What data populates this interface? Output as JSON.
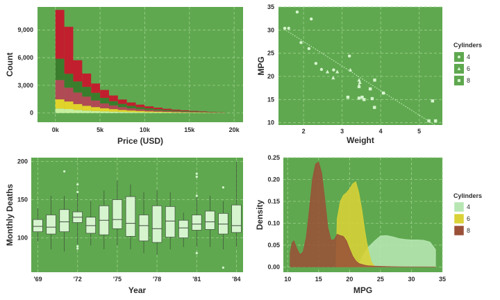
{
  "colors": {
    "panel": "#5fa84f",
    "grid": "#9fd08f",
    "light": "#d6f5cf",
    "bar_red": "#c11f2e",
    "bar_darkgreen": "#3a7d2c",
    "bar_pink": "#c05660",
    "bar_rose": "#b04a55",
    "bar_yellow": "#e2d32a",
    "bar_palegreen": "#c6ef9e",
    "dens_light": "#b7e6b3",
    "dens_yellow": "#dad237",
    "dens_brown": "#9a5138"
  },
  "chart_data": [
    {
      "id": "price-histogram",
      "type": "bar",
      "stacked": true,
      "xlabel": "Price (USD)",
      "ylabel": "Count",
      "xlim": [
        -2000,
        21000
      ],
      "ylim": [
        -1000,
        11500
      ],
      "xticks": [
        0,
        5000,
        10000,
        15000,
        20000
      ],
      "xtick_labels": [
        "0k",
        "5k",
        "10k",
        "15k",
        "20k"
      ],
      "yticks": [
        0,
        3000,
        6000,
        9000
      ],
      "ytick_labels": [
        "0",
        "3,000",
        "6,000",
        "9,000"
      ],
      "bin_start": 0,
      "bin_width": 1000,
      "series": [
        {
          "name": "palegreen",
          "color_key": "bar_palegreen",
          "values": [
            480,
            430,
            330,
            260,
            220,
            180,
            150,
            120,
            100,
            85,
            70,
            60,
            50,
            40,
            35,
            30,
            25,
            20,
            15
          ]
        },
        {
          "name": "yellow",
          "color_key": "bar_yellow",
          "values": [
            1000,
            820,
            640,
            520,
            420,
            330,
            270,
            210,
            170,
            140,
            110,
            90,
            70,
            55,
            45,
            35,
            25,
            20,
            10
          ]
        },
        {
          "name": "rose",
          "color_key": "bar_rose",
          "values": [
            2100,
            1500,
            1250,
            1000,
            720,
            530,
            400,
            310,
            240,
            190,
            150,
            120,
            100,
            80,
            60,
            45,
            35,
            25,
            15
          ]
        },
        {
          "name": "darkgreen",
          "color_key": "bar_darkgreen",
          "values": [
            2300,
            1500,
            1200,
            1050,
            820,
            600,
            460,
            350,
            270,
            210,
            170,
            140,
            110,
            90,
            70,
            55,
            40,
            30,
            20
          ]
        },
        {
          "name": "red",
          "color_key": "bar_red",
          "values": [
            5300,
            5100,
            2300,
            1450,
            1020,
            860,
            620,
            470,
            360,
            280,
            220,
            170,
            130,
            100,
            80,
            60,
            45,
            30,
            20
          ]
        }
      ]
    },
    {
      "id": "mpg-scatter",
      "type": "scatter",
      "xlabel": "Weight",
      "ylabel": "MPG",
      "xlim": [
        1.35,
        5.6
      ],
      "ylim": [
        9.5,
        35
      ],
      "xticks": [
        2,
        3,
        4,
        5
      ],
      "yticks": [
        10,
        15,
        20,
        25,
        30,
        35
      ],
      "legend_title": "Cylinders",
      "legend_entries": [
        "4",
        "6",
        "8"
      ],
      "trend": {
        "x": [
          1.5,
          5.4
        ],
        "y": [
          30.2,
          9.5
        ]
      },
      "series": [
        {
          "name": "4",
          "shape": "circle",
          "points": [
            [
              1.513,
              30.4
            ],
            [
              1.615,
              30.4
            ],
            [
              1.835,
              33.9
            ],
            [
              1.935,
              27.3
            ],
            [
              2.14,
              26.0
            ],
            [
              2.2,
              32.4
            ],
            [
              2.32,
              22.8
            ],
            [
              2.465,
              21.5
            ],
            [
              2.78,
              21.4
            ],
            [
              3.19,
              24.4
            ]
          ]
        },
        {
          "name": "6",
          "shape": "triangle",
          "points": [
            [
              2.62,
              21.0
            ],
            [
              2.875,
              21.0
            ],
            [
              2.77,
              19.7
            ],
            [
              3.215,
              21.4
            ],
            [
              3.44,
              18.1
            ],
            [
              3.44,
              19.2
            ],
            [
              3.46,
              18.7
            ],
            [
              3.44,
              17.8
            ]
          ]
        },
        {
          "name": "8",
          "shape": "square",
          "points": [
            [
              3.15,
              15.5
            ],
            [
              3.44,
              15.3
            ],
            [
              3.52,
              15.5
            ],
            [
              3.57,
              15.0
            ],
            [
              3.73,
              17.3
            ],
            [
              3.78,
              15.2
            ],
            [
              3.84,
              13.3
            ],
            [
              3.845,
              19.2
            ],
            [
              4.07,
              16.4
            ],
            [
              5.25,
              10.4
            ],
            [
              5.345,
              14.7
            ],
            [
              5.424,
              10.4
            ]
          ]
        }
      ]
    },
    {
      "id": "deaths-boxplot",
      "type": "box",
      "xlabel": "Year",
      "ylabel": "Monthly Deaths",
      "xlim": [
        1968.5,
        1984.5
      ],
      "ylim": [
        55,
        205
      ],
      "xticks": [
        1969,
        1972,
        1975,
        1978,
        1981,
        1984
      ],
      "xtick_labels": [
        "'69",
        "'72",
        "'75",
        "'78",
        "'81",
        "'84"
      ],
      "yticks": [
        100,
        150,
        200
      ],
      "boxes": [
        {
          "year": 1969,
          "min": 95,
          "q1": 108,
          "median": 115,
          "q3": 124,
          "max": 139,
          "outliers": []
        },
        {
          "year": 1970,
          "min": 85,
          "q1": 105,
          "median": 114,
          "q3": 130,
          "max": 155,
          "outliers": []
        },
        {
          "year": 1971,
          "min": 82,
          "q1": 108,
          "median": 121,
          "q3": 137,
          "max": 155,
          "outliers": [
            187
          ]
        },
        {
          "year": 1972,
          "min": 92,
          "q1": 120,
          "median": 127,
          "q3": 134,
          "max": 160,
          "outliers": [
            86,
            89,
            160,
            170
          ]
        },
        {
          "year": 1973,
          "min": 90,
          "q1": 106,
          "median": 116,
          "q3": 127,
          "max": 148,
          "outliers": []
        },
        {
          "year": 1974,
          "min": 85,
          "q1": 104,
          "median": 123,
          "q3": 142,
          "max": 162,
          "outliers": []
        },
        {
          "year": 1975,
          "min": 90,
          "q1": 112,
          "median": 124,
          "q3": 150,
          "max": 175,
          "outliers": []
        },
        {
          "year": 1976,
          "min": 85,
          "q1": 102,
          "median": 119,
          "q3": 154,
          "max": 170,
          "outliers": []
        },
        {
          "year": 1977,
          "min": 80,
          "q1": 96,
          "median": 116,
          "q3": 130,
          "max": 160,
          "outliers": []
        },
        {
          "year": 1978,
          "min": 78,
          "q1": 94,
          "median": 112,
          "q3": 142,
          "max": 162,
          "outliers": []
        },
        {
          "year": 1979,
          "min": 85,
          "q1": 101,
          "median": 122,
          "q3": 141,
          "max": 160,
          "outliers": []
        },
        {
          "year": 1980,
          "min": 88,
          "q1": 100,
          "median": 113,
          "q3": 123,
          "max": 133,
          "outliers": []
        },
        {
          "year": 1981,
          "min": 88,
          "q1": 110,
          "median": 118,
          "q3": 130,
          "max": 155,
          "outliers": [
            80,
            155,
            180,
            184
          ]
        },
        {
          "year": 1982,
          "min": 88,
          "q1": 111,
          "median": 121,
          "q3": 135,
          "max": 155,
          "outliers": []
        },
        {
          "year": 1983,
          "min": 85,
          "q1": 105,
          "median": 118,
          "q3": 132,
          "max": 148,
          "outliers": [
            61,
            166
          ]
        },
        {
          "year": 1984,
          "min": 88,
          "q1": 107,
          "median": 116,
          "q3": 143,
          "max": 200,
          "outliers": []
        }
      ]
    },
    {
      "id": "mpg-density",
      "type": "area",
      "xlabel": "MPG",
      "ylabel": "Density",
      "xlim": [
        9.3,
        35
      ],
      "ylim": [
        -0.012,
        0.25
      ],
      "xticks": [
        10,
        15,
        20,
        25,
        30,
        35
      ],
      "yticks": [
        0,
        0.05,
        0.1,
        0.15,
        0.2,
        0.25
      ],
      "ytick_labels": [
        "0.00",
        "0.05",
        "0.10",
        "0.15",
        "0.20",
        "0.25"
      ],
      "legend_title": "Cylinders",
      "legend_entries": [
        "4",
        "6",
        "8"
      ],
      "series": [
        {
          "name": "4",
          "color_key": "dens_light",
          "x": [
            21.4,
            22,
            23,
            24,
            25,
            26,
            27,
            28,
            29,
            30,
            31,
            32,
            33,
            33.9
          ],
          "y": [
            0.0,
            0.021,
            0.045,
            0.059,
            0.071,
            0.072,
            0.069,
            0.065,
            0.063,
            0.062,
            0.062,
            0.061,
            0.057,
            0.04
          ]
        },
        {
          "name": "6",
          "color_key": "dens_yellow",
          "x": [
            17.8,
            18,
            18.5,
            19,
            19.5,
            20,
            20.5,
            21,
            21.5,
            22,
            22.5,
            23,
            23.5,
            24,
            24.3
          ],
          "y": [
            0.0,
            0.11,
            0.15,
            0.164,
            0.17,
            0.178,
            0.19,
            0.195,
            0.17,
            0.13,
            0.08,
            0.04,
            0.012,
            0.002,
            0.0
          ]
        },
        {
          "name": "8",
          "color_key": "dens_brown",
          "x": [
            10.4,
            10.7,
            11,
            11.5,
            12,
            12.5,
            13,
            13.5,
            14,
            14.5,
            15,
            15.5,
            16,
            16.5,
            17,
            17.5,
            18,
            18.5,
            19,
            19.5,
            20,
            20.5,
            21,
            21.5,
            22,
            22.5,
            23,
            24,
            26,
            28,
            30,
            32,
            34
          ],
          "y": [
            0.032,
            0.055,
            0.06,
            0.042,
            0.028,
            0.035,
            0.068,
            0.13,
            0.2,
            0.235,
            0.24,
            0.215,
            0.155,
            0.09,
            0.062,
            0.062,
            0.075,
            0.072,
            0.07,
            0.06,
            0.042,
            0.025,
            0.014,
            0.008,
            0.006,
            0.004,
            0.003,
            0.002,
            0.001,
            0.0005,
            0.0003,
            0.0002,
            0.0
          ]
        }
      ]
    }
  ]
}
